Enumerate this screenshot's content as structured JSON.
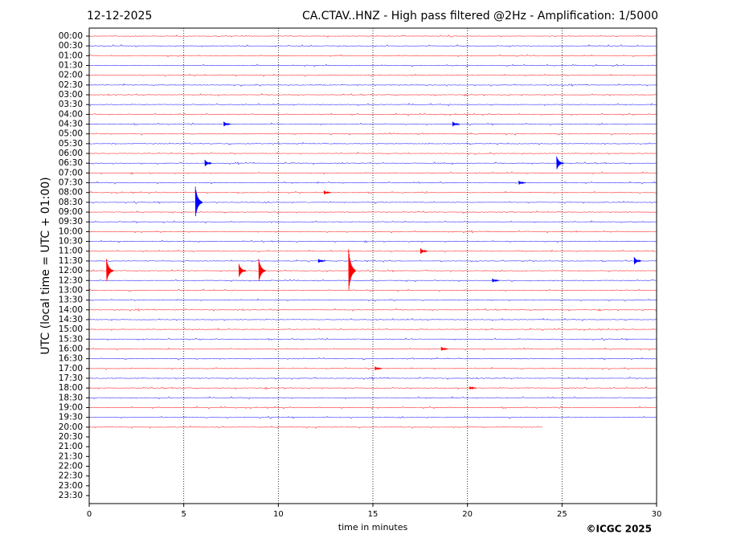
{
  "chart_data": {
    "type": "helicorder",
    "date": "12-12-2025",
    "title": "CA.CTAV..HNZ - High pass filtered @2Hz - Amplification: 1/5000",
    "ylabel": "UTC (local time = UTC + 01:00)",
    "xlabel": "time in minutes",
    "copyright": "©ICGC 2025",
    "xlim": [
      0,
      30
    ],
    "xticks": [
      0,
      5,
      10,
      15,
      20,
      25,
      30
    ],
    "grid": true,
    "categories": [
      "00:00",
      "00:30",
      "01:00",
      "01:30",
      "02:00",
      "02:30",
      "03:00",
      "03:30",
      "04:00",
      "04:30",
      "05:00",
      "05:30",
      "06:00",
      "06:30",
      "07:00",
      "07:30",
      "08:00",
      "08:30",
      "09:00",
      "09:30",
      "10:00",
      "10:30",
      "11:00",
      "11:30",
      "12:00",
      "12:30",
      "13:00",
      "13:30",
      "14:00",
      "14:30",
      "15:00",
      "15:30",
      "16:00",
      "16:30",
      "17:00",
      "17:30",
      "18:00",
      "18:30",
      "19:00",
      "19:30",
      "20:00",
      "20:30",
      "21:00",
      "21:30",
      "22:00",
      "22:30",
      "23:00",
      "23:30"
    ],
    "colors": [
      "#ff0000",
      "#0000ff"
    ],
    "recorded_rows": 41,
    "last_trace_end": 24,
    "events": [
      {
        "row": 9,
        "minute": 7.2,
        "amplitude": 0.25
      },
      {
        "row": 9,
        "minute": 19.3,
        "amplitude": 0.25
      },
      {
        "row": 13,
        "minute": 24.8,
        "amplitude": 0.7
      },
      {
        "row": 13,
        "minute": 6.2,
        "amplitude": 0.35
      },
      {
        "row": 15,
        "minute": 22.8,
        "amplitude": 0.2
      },
      {
        "row": 16,
        "minute": 12.5,
        "amplitude": 0.2
      },
      {
        "row": 17,
        "minute": 5.7,
        "amplitude": 1.6
      },
      {
        "row": 22,
        "minute": 17.6,
        "amplitude": 0.3
      },
      {
        "row": 23,
        "minute": 28.9,
        "amplitude": 0.4
      },
      {
        "row": 23,
        "minute": 12.2,
        "amplitude": 0.2
      },
      {
        "row": 24,
        "minute": 1.0,
        "amplitude": 1.2
      },
      {
        "row": 24,
        "minute": 8.0,
        "amplitude": 0.7
      },
      {
        "row": 24,
        "minute": 9.05,
        "amplitude": 1.2
      },
      {
        "row": 24,
        "minute": 13.8,
        "amplitude": 2.2
      },
      {
        "row": 25,
        "minute": 21.4,
        "amplitude": 0.2
      },
      {
        "row": 32,
        "minute": 18.7,
        "amplitude": 0.2
      },
      {
        "row": 34,
        "minute": 15.2,
        "amplitude": 0.2
      },
      {
        "row": 36,
        "minute": 20.2,
        "amplitude": 0.15
      }
    ]
  }
}
